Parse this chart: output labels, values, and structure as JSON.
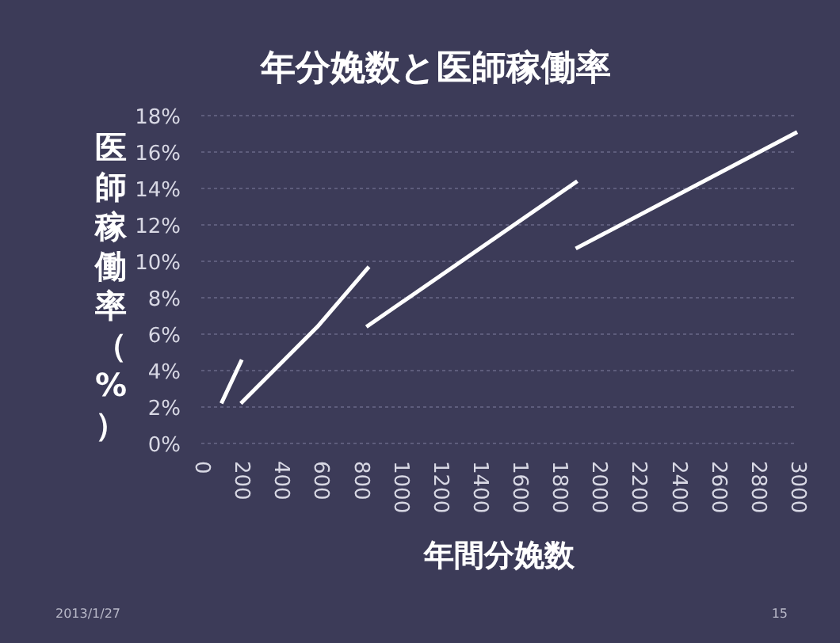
{
  "chart_data": {
    "type": "line",
    "title": "年分娩数と医師稼働率",
    "xlabel": "年間分娩数",
    "ylabel": "医師稼働率（%）",
    "xlim": [
      0,
      3000
    ],
    "xticks": [
      0,
      200,
      400,
      600,
      800,
      1000,
      1200,
      1400,
      1600,
      1800,
      2000,
      2200,
      2400,
      2600,
      2800,
      3000
    ],
    "ylim": [
      0,
      18
    ],
    "yticks": [
      {
        "value": 0,
        "label": "0%"
      },
      {
        "value": 2,
        "label": "2%"
      },
      {
        "value": 4,
        "label": "4%"
      },
      {
        "value": 6,
        "label": "6%"
      },
      {
        "value": 8,
        "label": "8%"
      },
      {
        "value": 10,
        "label": "10%"
      },
      {
        "value": 12,
        "label": "12%"
      },
      {
        "value": 14,
        "label": "14%"
      },
      {
        "value": 16,
        "label": "16%"
      },
      {
        "value": 18,
        "label": "18%"
      }
    ],
    "grid": "y",
    "line_style": "solid",
    "series": [
      {
        "color": "#ffffff",
        "x": [
          101,
          204
        ],
        "values": [
          2.2,
          4.6
        ]
      },
      {
        "color": "#ffffff",
        "x": [
          199,
          584,
          844
        ],
        "values": [
          2.2,
          6.4,
          9.7
        ]
      },
      {
        "color": "#ffffff",
        "x": [
          831,
          1893
        ],
        "values": [
          6.4,
          14.4
        ]
      },
      {
        "color": "#ffffff",
        "x": [
          1885,
          3000
        ],
        "values": [
          10.7,
          17.1
        ]
      }
    ],
    "annotations": [
      "2013/1/27",
      "15"
    ]
  }
}
